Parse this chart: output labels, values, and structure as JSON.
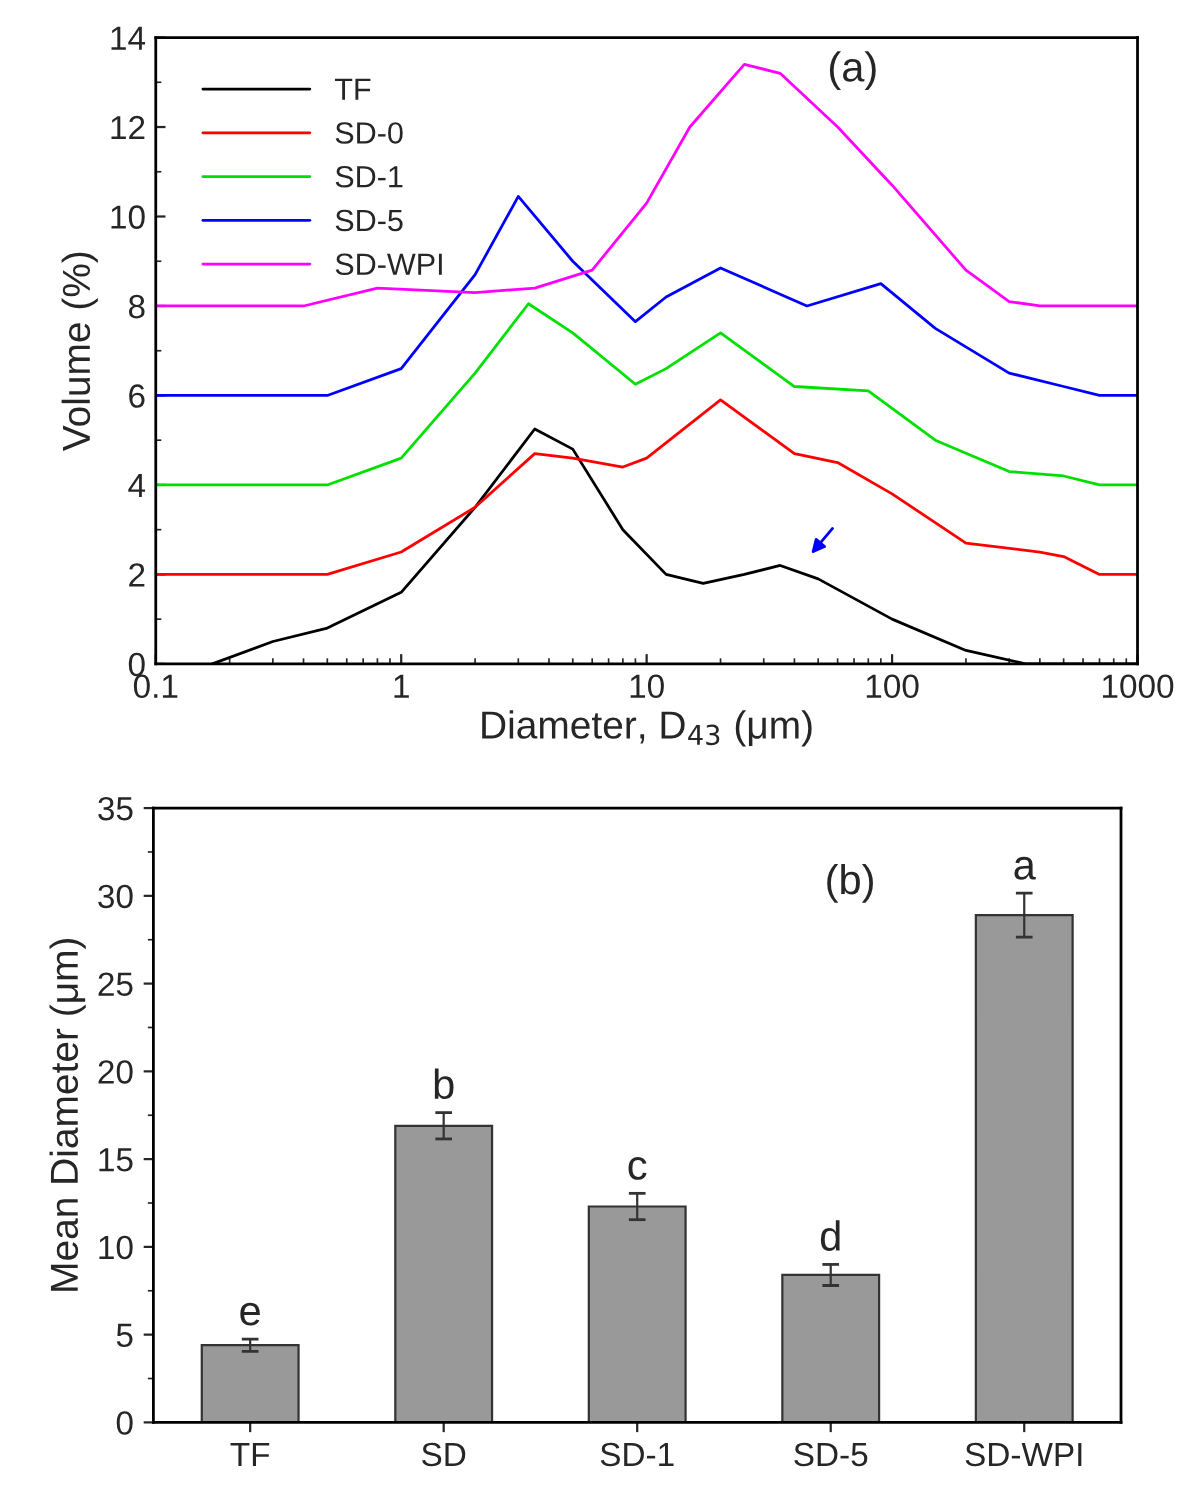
{
  "chart_data": [
    {
      "type": "line",
      "xlabel": "Diameter, D$_{43}$ (μm)",
      "ylabel": "Volume (%)",
      "log": "x",
      "xlim": [
        0.1,
        1000
      ],
      "xticks": [
        0.1,
        1,
        10,
        100,
        1000
      ],
      "ylim": [
        0,
        14
      ],
      "yticks": [
        0,
        2,
        4,
        6,
        8,
        10,
        12,
        14
      ],
      "legend": "top left",
      "grid": false,
      "annotations": [
        "(a)"
      ],
      "series": [
        {
          "name": "TF",
          "color": "#000000",
          "x": [
            0.17,
            0.3,
            0.5,
            1,
            2,
            3.5,
            5,
            8,
            12,
            17,
            25,
            35,
            50,
            100,
            200,
            350,
            1000
          ],
          "values": [
            0,
            0.5,
            0.8,
            1.6,
            3.5,
            5.25,
            4.8,
            3.0,
            2.0,
            1.8,
            2.0,
            2.2,
            1.9,
            1.0,
            0.3,
            0,
            0
          ]
        },
        {
          "name": "SD-0",
          "color": "#ff0000",
          "x": [
            0.1,
            0.5,
            1,
            2,
            3.5,
            5,
            8,
            10,
            20,
            40,
            60,
            100,
            200,
            400,
            500,
            700,
            1000
          ],
          "values": [
            2.0,
            2.0,
            2.5,
            3.5,
            4.7,
            4.6,
            4.4,
            4.6,
            5.9,
            4.7,
            4.5,
            3.8,
            2.7,
            2.5,
            2.4,
            2.0,
            2.0
          ]
        },
        {
          "name": "SD-1",
          "color": "#00e000",
          "x": [
            0.1,
            0.5,
            1,
            2,
            3.3,
            5,
            9,
            12,
            20,
            40,
            80,
            150,
            300,
            500,
            700,
            1000
          ],
          "values": [
            4.0,
            4.0,
            4.6,
            6.5,
            8.05,
            7.4,
            6.25,
            6.6,
            7.4,
            6.2,
            6.1,
            5.0,
            4.3,
            4.2,
            4.0,
            4.0
          ]
        },
        {
          "name": "SD-5",
          "color": "#0000ff",
          "x": [
            0.1,
            0.5,
            1,
            2,
            3,
            5,
            9,
            12,
            20,
            45,
            90,
            150,
            300,
            500,
            700,
            1000
          ],
          "values": [
            6.0,
            6.0,
            6.6,
            8.7,
            10.45,
            9.0,
            7.65,
            8.2,
            8.85,
            8.0,
            8.5,
            7.5,
            6.5,
            6.2,
            6.0,
            6.0
          ]
        },
        {
          "name": "SD-WPI",
          "color": "#ff00ff",
          "x": [
            0.1,
            0.4,
            0.8,
            2,
            3.5,
            6,
            10,
            15,
            25,
            35,
            60,
            100,
            200,
            300,
            400,
            1000
          ],
          "values": [
            8.0,
            8.0,
            8.4,
            8.3,
            8.4,
            8.8,
            10.3,
            12.0,
            13.4,
            13.2,
            12.0,
            10.7,
            8.8,
            8.1,
            8.0,
            8.0
          ]
        }
      ]
    },
    {
      "type": "bar",
      "ylabel": "Mean Diameter (μm)",
      "categories": [
        "TF",
        "SD",
        "SD-1",
        "SD-5",
        "SD-WPI"
      ],
      "ylim": [
        0,
        35
      ],
      "yticks": [
        0,
        5,
        10,
        15,
        20,
        25,
        30,
        35
      ],
      "grid": false,
      "annotations": [
        "(b)"
      ],
      "series": [
        {
          "color": "#999999",
          "values": [
            4.4,
            16.9,
            12.3,
            8.4,
            28.9
          ],
          "errors": [
            0.35,
            0.75,
            0.75,
            0.6,
            1.25
          ],
          "value_labels": [
            "e",
            "b",
            "c",
            "d",
            "a"
          ]
        }
      ]
    }
  ]
}
